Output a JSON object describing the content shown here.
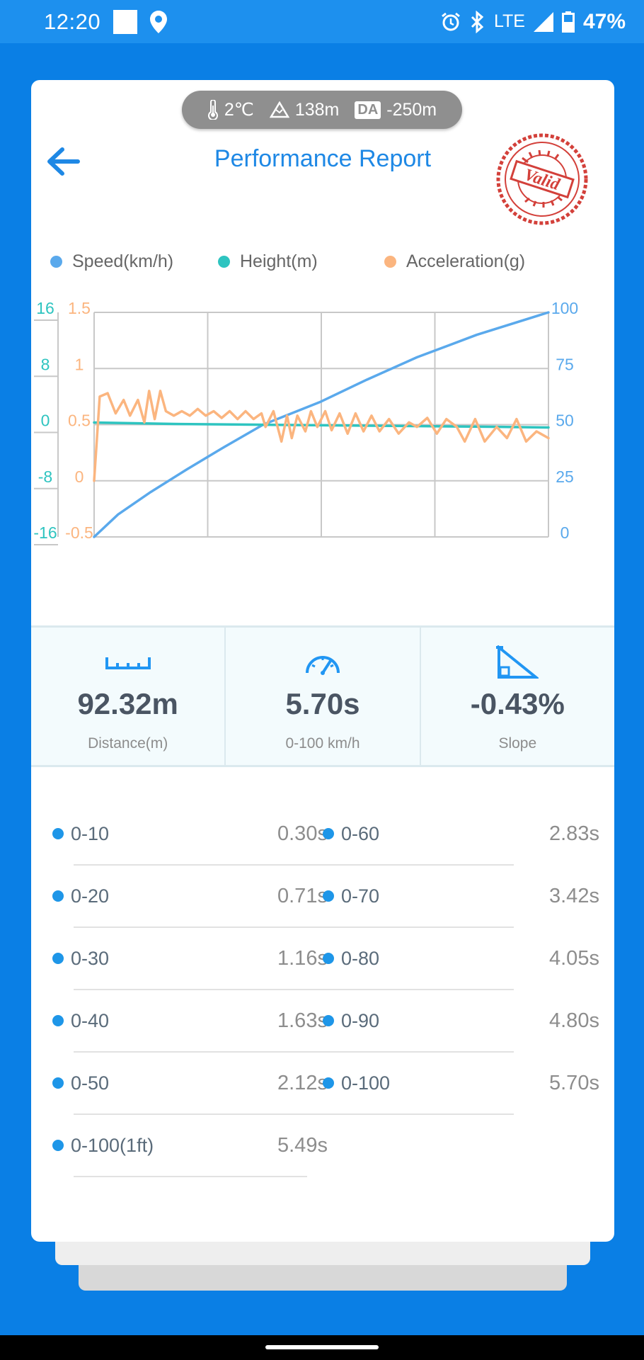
{
  "status_bar": {
    "time": "12:20",
    "network": "LTE",
    "battery": "47%"
  },
  "conditions": {
    "temperature": "2℃",
    "altitude": "138m",
    "density_altitude_badge": "DA",
    "density_altitude": "-250m"
  },
  "header": {
    "title": "Performance Report",
    "stamp_text": "Valid"
  },
  "legend": [
    {
      "label": "Speed(km/h)",
      "color": "#5aa9ec"
    },
    {
      "label": "Height(m)",
      "color": "#2ec4c0"
    },
    {
      "label": "Acceleration(g)",
      "color": "#fbb57f"
    }
  ],
  "chart_data": {
    "type": "line",
    "x_range": [
      0,
      5.7
    ],
    "axes": {
      "height_axis": {
        "color": "#2ec4c0",
        "ticks": [
          "16",
          "8",
          "0",
          "-8",
          "-16"
        ],
        "range": [
          -16,
          16
        ]
      },
      "acceleration_axis": {
        "color": "#fbb57f",
        "ticks": [
          "1.5",
          "1",
          "0.5",
          "0",
          "-0.5"
        ],
        "range": [
          -0.5,
          1.5
        ]
      },
      "speed_axis": {
        "color": "#5aa9ec",
        "ticks": [
          "100",
          "75",
          "50",
          "25",
          "0"
        ],
        "range": [
          0,
          100
        ]
      }
    },
    "series": [
      {
        "name": "Speed(km/h)",
        "color": "#5aa9ec",
        "axis": "speed_axis",
        "points": [
          [
            0,
            0
          ],
          [
            0.3,
            10
          ],
          [
            0.71,
            20
          ],
          [
            1.16,
            30
          ],
          [
            1.63,
            40
          ],
          [
            2.12,
            50
          ],
          [
            2.83,
            60
          ],
          [
            3.42,
            70
          ],
          [
            4.05,
            80
          ],
          [
            4.8,
            90
          ],
          [
            5.7,
            100
          ]
        ]
      },
      {
        "name": "Height(m)",
        "color": "#2ec4c0",
        "axis": "height_axis",
        "points": [
          [
            0,
            0.3
          ],
          [
            1,
            0.1
          ],
          [
            2,
            0
          ],
          [
            3,
            -0.1
          ],
          [
            4,
            -0.2
          ],
          [
            5,
            -0.3
          ],
          [
            5.7,
            -0.4
          ]
        ]
      },
      {
        "name": "Acceleration(g)",
        "color": "#fbb57f",
        "axis": "acceleration_axis",
        "points": [
          [
            0,
            0
          ],
          [
            0.07,
            0.75
          ],
          [
            0.17,
            0.78
          ],
          [
            0.27,
            0.6
          ],
          [
            0.37,
            0.72
          ],
          [
            0.45,
            0.58
          ],
          [
            0.55,
            0.72
          ],
          [
            0.63,
            0.52
          ],
          [
            0.69,
            0.8
          ],
          [
            0.76,
            0.55
          ],
          [
            0.83,
            0.8
          ],
          [
            0.9,
            0.62
          ],
          [
            1.0,
            0.58
          ],
          [
            1.1,
            0.62
          ],
          [
            1.2,
            0.58
          ],
          [
            1.3,
            0.64
          ],
          [
            1.4,
            0.58
          ],
          [
            1.5,
            0.62
          ],
          [
            1.6,
            0.56
          ],
          [
            1.7,
            0.62
          ],
          [
            1.8,
            0.55
          ],
          [
            1.9,
            0.62
          ],
          [
            2.0,
            0.55
          ],
          [
            2.1,
            0.6
          ],
          [
            2.15,
            0.48
          ],
          [
            2.25,
            0.62
          ],
          [
            2.35,
            0.35
          ],
          [
            2.42,
            0.58
          ],
          [
            2.48,
            0.38
          ],
          [
            2.55,
            0.58
          ],
          [
            2.65,
            0.44
          ],
          [
            2.72,
            0.62
          ],
          [
            2.8,
            0.48
          ],
          [
            2.9,
            0.62
          ],
          [
            2.98,
            0.45
          ],
          [
            3.08,
            0.6
          ],
          [
            3.18,
            0.42
          ],
          [
            3.28,
            0.6
          ],
          [
            3.38,
            0.44
          ],
          [
            3.48,
            0.58
          ],
          [
            3.58,
            0.44
          ],
          [
            3.7,
            0.55
          ],
          [
            3.82,
            0.42
          ],
          [
            3.95,
            0.52
          ],
          [
            4.05,
            0.48
          ],
          [
            4.18,
            0.56
          ],
          [
            4.3,
            0.42
          ],
          [
            4.42,
            0.55
          ],
          [
            4.55,
            0.48
          ],
          [
            4.65,
            0.35
          ],
          [
            4.78,
            0.55
          ],
          [
            4.9,
            0.35
          ],
          [
            5.05,
            0.48
          ],
          [
            5.18,
            0.38
          ],
          [
            5.3,
            0.55
          ],
          [
            5.42,
            0.35
          ],
          [
            5.55,
            0.44
          ],
          [
            5.7,
            0.38
          ]
        ]
      }
    ]
  },
  "stats": [
    {
      "value": "92.32m",
      "label": "Distance(m)",
      "icon": "ruler-icon"
    },
    {
      "value": "5.70s",
      "label": "0-100 km/h",
      "icon": "speedometer-icon"
    },
    {
      "value": "-0.43%",
      "label": "Slope",
      "icon": "slope-icon"
    }
  ],
  "times": [
    {
      "left": {
        "label": "0-10",
        "value": "0.30s"
      },
      "right": {
        "label": "0-60",
        "value": "2.83s"
      }
    },
    {
      "left": {
        "label": "0-20",
        "value": "0.71s"
      },
      "right": {
        "label": "0-70",
        "value": "3.42s"
      }
    },
    {
      "left": {
        "label": "0-30",
        "value": "1.16s"
      },
      "right": {
        "label": "0-80",
        "value": "4.05s"
      }
    },
    {
      "left": {
        "label": "0-40",
        "value": "1.63s"
      },
      "right": {
        "label": "0-90",
        "value": "4.80s"
      }
    },
    {
      "left": {
        "label": "0-50",
        "value": "2.12s"
      },
      "right": {
        "label": "0-100",
        "value": "5.70s"
      }
    },
    {
      "left": {
        "label": "0-100(1ft)",
        "value": "5.49s"
      }
    }
  ]
}
